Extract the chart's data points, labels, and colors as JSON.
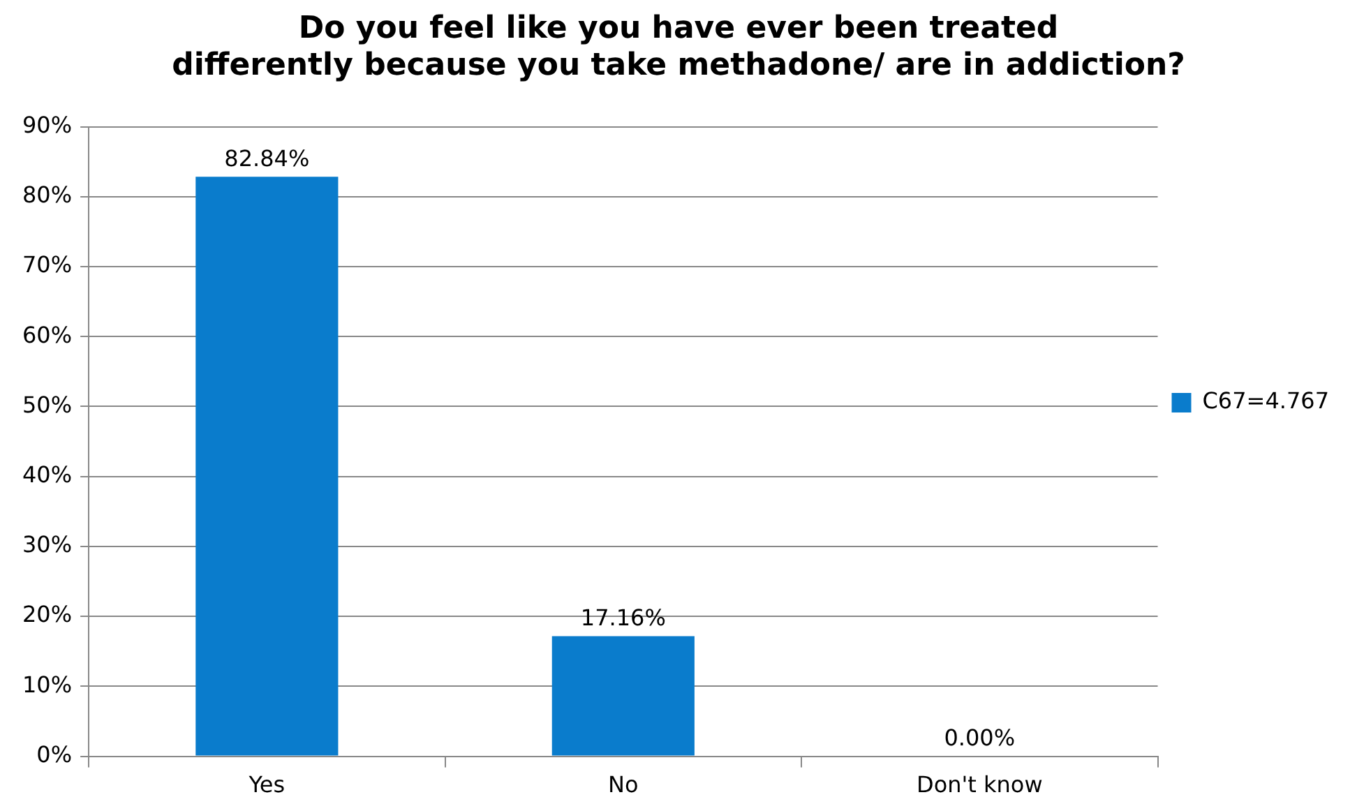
{
  "chart_data": {
    "type": "bar",
    "title": [
      "Do you feel like you have ever been treated",
      "differently because you take methadone/ are in addiction?"
    ],
    "categories": [
      "Yes",
      "No",
      "Don't know"
    ],
    "series": [
      {
        "name": "C67=4.767",
        "color": "#0a7ccc",
        "values": [
          82.84,
          17.16,
          0
        ],
        "value_labels": [
          "82.84%",
          "17.16%",
          "0.00%"
        ]
      }
    ],
    "ylim": [
      0,
      90
    ],
    "yticks": [
      {
        "value": 0,
        "label": "0%"
      },
      {
        "value": 10,
        "label": "10%"
      },
      {
        "value": 20,
        "label": "20%"
      },
      {
        "value": 30,
        "label": "30%"
      },
      {
        "value": 40,
        "label": "40%"
      },
      {
        "value": 50,
        "label": "50%"
      },
      {
        "value": 60,
        "label": "60%"
      },
      {
        "value": 70,
        "label": "70%"
      },
      {
        "value": 80,
        "label": "80%"
      },
      {
        "value": 90,
        "label": "90%"
      }
    ],
    "grid": "y",
    "legend": "right"
  }
}
